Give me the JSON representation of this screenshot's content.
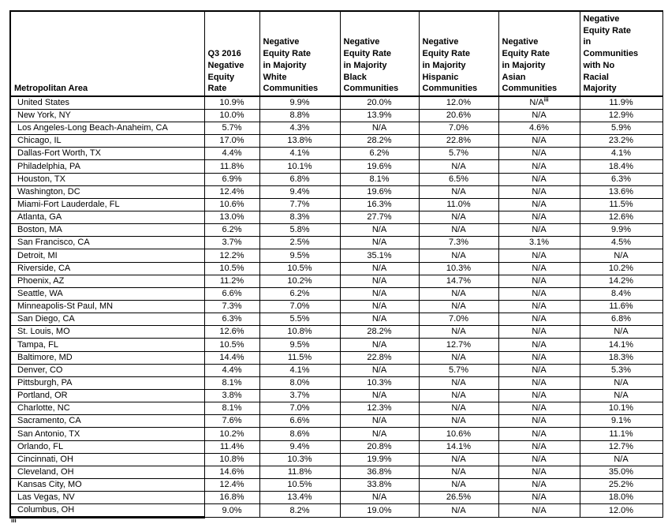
{
  "page": {
    "background": "#ffffff",
    "border_color": "#000000",
    "text_color": "#000000"
  },
  "footnote_marker": "iii",
  "table": {
    "columns": [
      "Metropolitan Area",
      "Q3 2016\nNegative\nEquity\nRate",
      "Negative\nEquity Rate\nin Majority\nWhite\nCommunities",
      "Negative\nEquity Rate\nin Majority\nBlack\nCommunities",
      "Negative\nEquity Rate\nin Majority\nHispanic\nCommunities",
      "Negative\nEquity Rate\nin Majority\nAsian\nCommunities",
      "Negative\nEquity Rate\nin\nCommunities\nwith No\nRacial\nMajority"
    ],
    "rows": [
      {
        "area": "United States",
        "values": [
          "10.9%",
          "9.9%",
          "20.0%",
          "12.0%",
          {
            "text": "N/A",
            "sup": "iii"
          },
          "11.9%"
        ]
      },
      {
        "area": "New York, NY",
        "values": [
          "10.0%",
          "8.8%",
          "13.9%",
          "20.6%",
          "N/A",
          "12.9%"
        ]
      },
      {
        "area": "Los Angeles-Long Beach-Anaheim, CA",
        "values": [
          "5.7%",
          "4.3%",
          "N/A",
          "7.0%",
          "4.6%",
          "5.9%"
        ]
      },
      {
        "area": "Chicago, IL",
        "values": [
          "17.0%",
          "13.8%",
          "28.2%",
          "22.8%",
          "N/A",
          "23.2%"
        ]
      },
      {
        "area": "Dallas-Fort Worth, TX",
        "values": [
          "4.4%",
          "4.1%",
          "6.2%",
          "5.7%",
          "N/A",
          "4.1%"
        ]
      },
      {
        "area": "Philadelphia, PA",
        "values": [
          "11.8%",
          "10.1%",
          "19.6%",
          "N/A",
          "N/A",
          "18.4%"
        ]
      },
      {
        "area": "Houston, TX",
        "values": [
          "6.9%",
          "6.8%",
          "8.1%",
          "6.5%",
          "N/A",
          "6.3%"
        ]
      },
      {
        "area": "Washington, DC",
        "values": [
          "12.4%",
          "9.4%",
          "19.6%",
          "N/A",
          "N/A",
          "13.6%"
        ]
      },
      {
        "area": "Miami-Fort Lauderdale, FL",
        "values": [
          "10.6%",
          "7.7%",
          "16.3%",
          "11.0%",
          "N/A",
          "11.5%"
        ]
      },
      {
        "area": "Atlanta, GA",
        "values": [
          "13.0%",
          "8.3%",
          "27.7%",
          "N/A",
          "N/A",
          "12.6%"
        ]
      },
      {
        "area": "Boston, MA",
        "values": [
          "6.2%",
          "5.8%",
          "N/A",
          "N/A",
          "N/A",
          "9.9%"
        ]
      },
      {
        "area": "San Francisco, CA",
        "values": [
          "3.7%",
          "2.5%",
          "N/A",
          "7.3%",
          "3.1%",
          "4.5%"
        ]
      },
      {
        "area": "Detroit, MI",
        "values": [
          "12.2%",
          "9.5%",
          "35.1%",
          "N/A",
          "N/A",
          "N/A"
        ]
      },
      {
        "area": "Riverside, CA",
        "values": [
          "10.5%",
          "10.5%",
          "N/A",
          "10.3%",
          "N/A",
          "10.2%"
        ]
      },
      {
        "area": "Phoenix, AZ",
        "values": [
          "11.2%",
          "10.2%",
          "N/A",
          "14.7%",
          "N/A",
          "14.2%"
        ]
      },
      {
        "area": "Seattle, WA",
        "values": [
          "6.6%",
          "6.2%",
          "N/A",
          "N/A",
          "N/A",
          "8.4%"
        ]
      },
      {
        "area": "Minneapolis-St Paul, MN",
        "values": [
          "7.3%",
          "7.0%",
          "N/A",
          "N/A",
          "N/A",
          "11.6%"
        ]
      },
      {
        "area": "San Diego, CA",
        "values": [
          "6.3%",
          "5.5%",
          "N/A",
          "7.0%",
          "N/A",
          "6.8%"
        ]
      },
      {
        "area": "St. Louis, MO",
        "values": [
          "12.6%",
          "10.8%",
          "28.2%",
          "N/A",
          "N/A",
          "N/A"
        ]
      },
      {
        "area": "Tampa, FL",
        "values": [
          "10.5%",
          "9.5%",
          "N/A",
          "12.7%",
          "N/A",
          "14.1%"
        ]
      },
      {
        "area": "Baltimore, MD",
        "values": [
          "14.4%",
          "11.5%",
          "22.8%",
          "N/A",
          "N/A",
          "18.3%"
        ]
      },
      {
        "area": "Denver, CO",
        "values": [
          "4.4%",
          "4.1%",
          "N/A",
          "5.7%",
          "N/A",
          "5.3%"
        ]
      },
      {
        "area": "Pittsburgh, PA",
        "values": [
          "8.1%",
          "8.0%",
          "10.3%",
          "N/A",
          "N/A",
          "N/A"
        ]
      },
      {
        "area": "Portland, OR",
        "values": [
          "3.8%",
          "3.7%",
          "N/A",
          "N/A",
          "N/A",
          "N/A"
        ]
      },
      {
        "area": "Charlotte, NC",
        "values": [
          "8.1%",
          "7.0%",
          "12.3%",
          "N/A",
          "N/A",
          "10.1%"
        ]
      },
      {
        "area": "Sacramento, CA",
        "values": [
          "7.6%",
          "6.6%",
          "N/A",
          "N/A",
          "N/A",
          "9.1%"
        ]
      },
      {
        "area": "San Antonio, TX",
        "values": [
          "10.2%",
          "8.6%",
          "N/A",
          "10.6%",
          "N/A",
          "11.1%"
        ]
      },
      {
        "area": "Orlando, FL",
        "values": [
          "11.4%",
          "9.4%",
          "20.8%",
          "14.1%",
          "N/A",
          "12.7%"
        ]
      },
      {
        "area": "Cincinnati, OH",
        "values": [
          "10.8%",
          "10.3%",
          "19.9%",
          "N/A",
          "N/A",
          "N/A"
        ]
      },
      {
        "area": "Cleveland, OH",
        "values": [
          "14.6%",
          "11.8%",
          "36.8%",
          "N/A",
          "N/A",
          "35.0%"
        ]
      },
      {
        "area": "Kansas City, MO",
        "values": [
          "12.4%",
          "10.5%",
          "33.8%",
          "N/A",
          "N/A",
          "25.2%"
        ]
      },
      {
        "area": "Las Vegas, NV",
        "values": [
          "16.8%",
          "13.4%",
          "N/A",
          "26.5%",
          "N/A",
          "18.0%"
        ]
      },
      {
        "area": "Columbus, OH",
        "values": [
          "9.0%",
          "8.2%",
          "19.0%",
          "N/A",
          "N/A",
          "12.0%"
        ]
      }
    ]
  }
}
